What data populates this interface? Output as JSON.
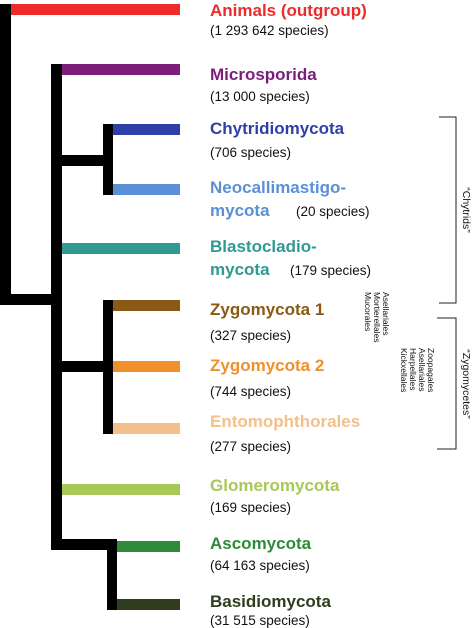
{
  "tree": {
    "trunk_color": "#000000",
    "taxa": [
      {
        "id": "animals",
        "name": "Animals (outgroup)",
        "count": "(1 293 642 species)",
        "color": "#ee2b2b"
      },
      {
        "id": "microsporida",
        "name": "Microsporida",
        "count": "(13 000 species)",
        "color": "#7b1e7a"
      },
      {
        "id": "chytridiomycota",
        "name": "Chytridiomycota",
        "count": "(706 species)",
        "color": "#2f3fa8"
      },
      {
        "id": "neocallimastigomycota",
        "name_line1": "Neocallimastigo-",
        "name_line2": "mycota",
        "count": "(20 species)",
        "color": "#5b8fd6"
      },
      {
        "id": "blastocladiomycota",
        "name_line1": "Blastocladio-",
        "name_line2": "mycota",
        "count": "(179 species)",
        "color": "#2f9a93"
      },
      {
        "id": "zygomycota1",
        "name": "Zygomycota 1",
        "count": "(327 species)",
        "color": "#8a5a14",
        "orders": [
          "Mucorales",
          "Mortierellales",
          "Asellariales"
        ]
      },
      {
        "id": "zygomycota2",
        "name": "Zygomycota 2",
        "count": "(744 species)",
        "color": "#f0902a",
        "orders": [
          "Kickxellales",
          "Harpellales",
          "Asellariales",
          "Zoopagales"
        ]
      },
      {
        "id": "entomophthorales",
        "name": "Entomophthorales",
        "count": "(277 species)",
        "color": "#f3bf8a"
      },
      {
        "id": "glomeromycota",
        "name": "Glomeromycota",
        "count": "(169 species)",
        "color": "#a7c957"
      },
      {
        "id": "ascomycota",
        "name": "Ascomycota",
        "count": "(64 163 species)",
        "color": "#2e8b3a"
      },
      {
        "id": "basidiomycota",
        "name": "Basidiomycota",
        "count": "(31 515 species)",
        "color": "#2f3d1f"
      }
    ]
  },
  "groups": {
    "chytrids": "“Chytrids”",
    "zygomycetes": "“Zygomycetes”"
  }
}
